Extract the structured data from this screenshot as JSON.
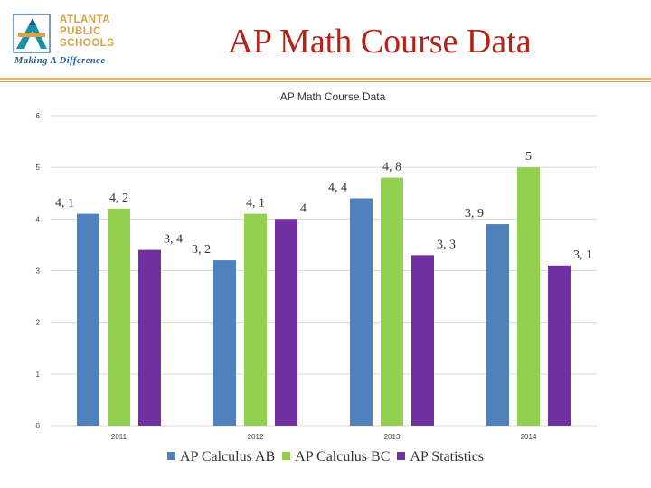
{
  "logo": {
    "lines": [
      "ATLANTA",
      "PUBLIC",
      "SCHOOLS"
    ],
    "tagline": "Making A Difference",
    "colors": {
      "gold": "#d7a24a",
      "blue": "#1f5a8c",
      "teal": "#1d8fa8"
    }
  },
  "slide": {
    "title": "AP Math Course Data",
    "title_color": "#b22418"
  },
  "chart_data": {
    "type": "bar",
    "title": "AP Math Course Data",
    "categories": [
      "2011",
      "2012",
      "2013",
      "2014"
    ],
    "series": [
      {
        "name": "AP Calculus AB",
        "color": "#4f81bd",
        "values": [
          4.1,
          3.2,
          4.4,
          3.9
        ],
        "labels": [
          "4, 1",
          "3, 2",
          "4, 4",
          "3, 9"
        ]
      },
      {
        "name": "AP Calculus BC",
        "color": "#92d050",
        "values": [
          4.2,
          4.1,
          4.8,
          5.0
        ],
        "labels": [
          "4, 2",
          "4, 1",
          "4, 8",
          "5"
        ]
      },
      {
        "name": "AP Statistics",
        "color": "#7030a0",
        "values": [
          3.4,
          4.0,
          3.3,
          3.1
        ],
        "labels": [
          "3, 4",
          "4",
          "3, 3",
          "3, 1"
        ]
      }
    ],
    "yticks": [
      "0",
      "1",
      "2",
      "3",
      "4",
      "5",
      "6"
    ],
    "ylim": [
      0,
      6
    ],
    "xlabel": "",
    "ylabel": "",
    "grid": true,
    "legend_position": "bottom"
  }
}
